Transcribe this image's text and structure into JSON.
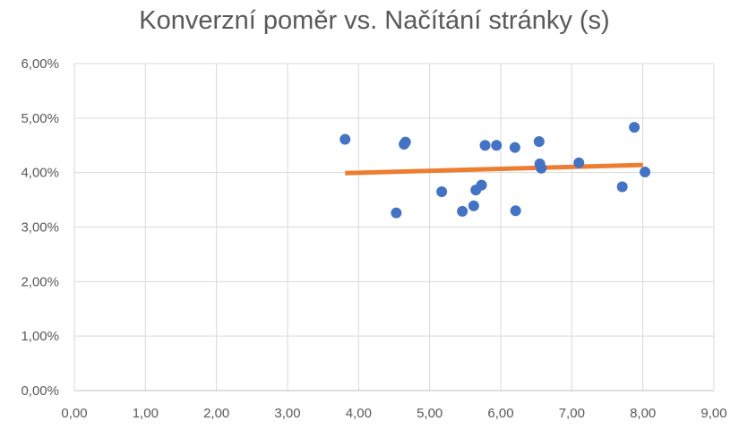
{
  "chart_data": {
    "type": "scatter",
    "title": "Konverzní poměr vs. Načítání stránky (s)",
    "xlabel": "",
    "ylabel": "",
    "xlim": [
      0,
      9
    ],
    "ylim": [
      0,
      0.06
    ],
    "x_ticks": [
      "0,00",
      "1,00",
      "2,00",
      "3,00",
      "4,00",
      "5,00",
      "6,00",
      "7,00",
      "8,00",
      "9,00"
    ],
    "y_ticks": [
      "0,00%",
      "1,00%",
      "2,00%",
      "3,00%",
      "4,00%",
      "5,00%",
      "6,00%"
    ],
    "grid": true,
    "legend": "none",
    "series": [
      {
        "color": "#4472C4",
        "points": [
          [
            3.81,
            0.0461
          ],
          [
            4.53,
            0.0326
          ],
          [
            4.64,
            0.0452
          ],
          [
            4.66,
            0.0456
          ],
          [
            5.17,
            0.0365
          ],
          [
            5.46,
            0.0329
          ],
          [
            5.62,
            0.0339
          ],
          [
            5.65,
            0.0368
          ],
          [
            5.73,
            0.0377
          ],
          [
            5.78,
            0.045
          ],
          [
            5.94,
            0.045
          ],
          [
            6.2,
            0.0446
          ],
          [
            6.21,
            0.033
          ],
          [
            6.54,
            0.0457
          ],
          [
            6.55,
            0.0416
          ],
          [
            6.57,
            0.0408
          ],
          [
            7.1,
            0.0418
          ],
          [
            7.71,
            0.0374
          ],
          [
            7.88,
            0.0483
          ],
          [
            8.03,
            0.0401
          ]
        ]
      }
    ],
    "trendline": {
      "color": "#ED7D31",
      "x": [
        3.81,
        8.0
      ],
      "y": [
        0.0399,
        0.0414
      ]
    }
  }
}
